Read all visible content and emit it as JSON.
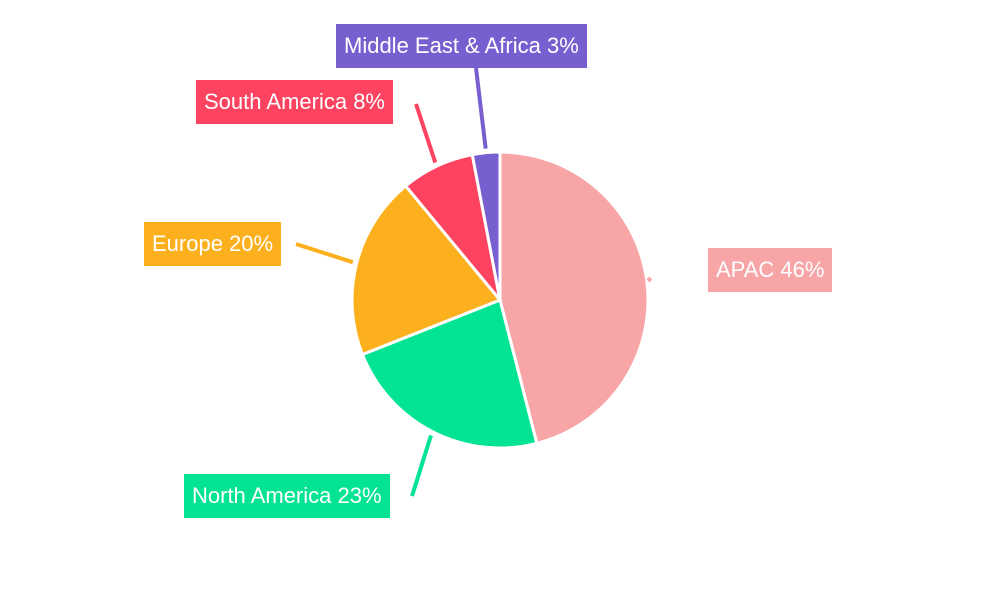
{
  "chart_data": {
    "type": "pie",
    "title": "",
    "categories": [
      "APAC",
      "North America",
      "Europe",
      "South America",
      "Middle East & Africa"
    ],
    "values": [
      46,
      23,
      20,
      8,
      3
    ],
    "unit": "%",
    "colors": [
      "#f8a5a8",
      "#02e394",
      "#fdb01d",
      "#fe4361",
      "#785fcf"
    ],
    "start_angle": "12 o'clock, clockwise",
    "legend": "none (callout labels)"
  },
  "labels": [
    {
      "text": "APAC 46%",
      "color": "#f8a5a8"
    },
    {
      "text": "North America 23%",
      "color": "#02e394"
    },
    {
      "text": "Europe 20%",
      "color": "#fdb01d"
    },
    {
      "text": "South America 8%",
      "color": "#fe4361"
    },
    {
      "text": "Middle East & Africa 3%",
      "color": "#785fcf"
    }
  ]
}
